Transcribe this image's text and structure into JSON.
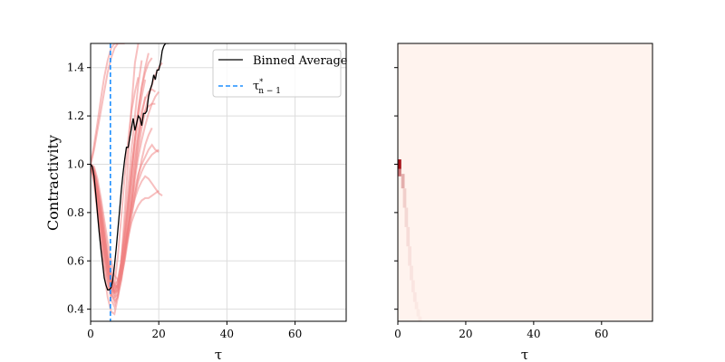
{
  "chart_data": [
    {
      "type": "line",
      "panel": "left",
      "xlabel": "τ",
      "ylabel": "Contractivity",
      "xlim": [
        0,
        75
      ],
      "ylim": [
        0.35,
        1.5
      ],
      "xticks": [
        0,
        20,
        40,
        60
      ],
      "xtick_labels": [
        "0",
        "20",
        "40",
        "60"
      ],
      "yticks": [
        0.4,
        0.6,
        0.8,
        1.0,
        1.2,
        1.4
      ],
      "ytick_labels": [
        "0.4",
        "0.6",
        "0.8",
        "1.0",
        "1.2",
        "1.4"
      ],
      "grid": true,
      "legend_position": "top-right",
      "legend": [
        {
          "label": "Binned Average",
          "color": "#000000",
          "style": "solid"
        },
        {
          "label": "τ*n−1",
          "color": "#1f8fff",
          "style": "dashed"
        }
      ],
      "binned_average": {
        "color": "#000000",
        "x": [
          0,
          0.5,
          1,
          1.5,
          2,
          2.5,
          3,
          3.5,
          4,
          4.5,
          5,
          5.5,
          6,
          6.5,
          7,
          7.5,
          8,
          8.5,
          9,
          9.5,
          10,
          10.5,
          11,
          11.5,
          12,
          12.5,
          13,
          13.5,
          14,
          14.5,
          15,
          15.5,
          16,
          16.5,
          17,
          17.5,
          18,
          18.5,
          19,
          19.5,
          20,
          20.5,
          21,
          21.5,
          22,
          22.5,
          23
        ],
        "y": [
          1.0,
          0.99,
          0.95,
          0.88,
          0.8,
          0.72,
          0.65,
          0.59,
          0.53,
          0.5,
          0.48,
          0.48,
          0.49,
          0.52,
          0.58,
          0.65,
          0.73,
          0.81,
          0.89,
          0.96,
          1.02,
          1.07,
          1.07,
          1.11,
          1.15,
          1.19,
          1.14,
          1.17,
          1.2,
          1.19,
          1.16,
          1.21,
          1.21,
          1.22,
          1.28,
          1.31,
          1.33,
          1.37,
          1.35,
          1.39,
          1.39,
          1.42,
          1.47,
          1.49,
          1.5,
          1.5,
          1.5
        ]
      },
      "tau_star": {
        "x": 5.8,
        "color": "#1f8fff"
      },
      "trajectory_color": "#f08080",
      "trajectories": [
        {
          "x": [
            0,
            1,
            2,
            3,
            4,
            5,
            6,
            7,
            8,
            9,
            10,
            11,
            12,
            13,
            14
          ],
          "y": [
            1.0,
            0.94,
            0.82,
            0.7,
            0.58,
            0.5,
            0.46,
            0.5,
            0.62,
            0.78,
            0.95,
            1.1,
            1.22,
            1.3,
            1.36
          ]
        },
        {
          "x": [
            0,
            1,
            2,
            3,
            4,
            5,
            6,
            7,
            8,
            9,
            10,
            11,
            12,
            13,
            14,
            15,
            16
          ],
          "y": [
            1.0,
            0.97,
            0.9,
            0.8,
            0.7,
            0.6,
            0.52,
            0.48,
            0.52,
            0.6,
            0.72,
            0.85,
            0.98,
            1.1,
            1.2,
            1.28,
            1.35
          ]
        },
        {
          "x": [
            0,
            1,
            2,
            3,
            4,
            5,
            6,
            7,
            8,
            9,
            10,
            11,
            12,
            13,
            14,
            15,
            16,
            17,
            18,
            19,
            20
          ],
          "y": [
            1.0,
            0.96,
            0.88,
            0.78,
            0.68,
            0.58,
            0.5,
            0.46,
            0.48,
            0.55,
            0.64,
            0.74,
            0.83,
            0.9,
            0.96,
            1.0,
            1.03,
            1.06,
            1.08,
            1.06,
            1.05
          ]
        },
        {
          "x": [
            0,
            1,
            2,
            3,
            4,
            5,
            6,
            7,
            8,
            9,
            10,
            11,
            12,
            13,
            14,
            15,
            16,
            17,
            18,
            19,
            20,
            21
          ],
          "y": [
            1.0,
            0.95,
            0.86,
            0.76,
            0.66,
            0.57,
            0.5,
            0.47,
            0.5,
            0.57,
            0.66,
            0.74,
            0.8,
            0.86,
            0.9,
            0.93,
            0.95,
            0.94,
            0.92,
            0.9,
            0.88,
            0.87
          ]
        },
        {
          "x": [
            0,
            1,
            2,
            3,
            4,
            5,
            6,
            7,
            8,
            9,
            10,
            11,
            12,
            13,
            14,
            15,
            16,
            17,
            18
          ],
          "y": [
            1.0,
            0.98,
            0.92,
            0.84,
            0.74,
            0.64,
            0.56,
            0.5,
            0.49,
            0.53,
            0.6,
            0.69,
            0.78,
            0.87,
            0.95,
            1.02,
            1.08,
            1.12,
            1.15
          ]
        },
        {
          "x": [
            0,
            1,
            2,
            3,
            4,
            5,
            6,
            7,
            8,
            9,
            10,
            11,
            12,
            13,
            14,
            15,
            16,
            17
          ],
          "y": [
            1.0,
            0.93,
            0.83,
            0.72,
            0.62,
            0.52,
            0.44,
            0.41,
            0.46,
            0.56,
            0.68,
            0.82,
            0.96,
            1.1,
            1.22,
            1.32,
            1.4,
            1.46
          ]
        },
        {
          "x": [
            0,
            1,
            2,
            3,
            4,
            5,
            6,
            7,
            8,
            9,
            10,
            11,
            12,
            13,
            14,
            15,
            16
          ],
          "y": [
            1.0,
            0.99,
            0.94,
            0.86,
            0.77,
            0.68,
            0.6,
            0.54,
            0.52,
            0.55,
            0.62,
            0.72,
            0.84,
            0.97,
            1.1,
            1.2,
            1.28
          ]
        },
        {
          "x": [
            0,
            1,
            2,
            3,
            4,
            5,
            6,
            7,
            8,
            9,
            10,
            11,
            12,
            13,
            14,
            15,
            16,
            17,
            18,
            19
          ],
          "y": [
            1.0,
            0.96,
            0.87,
            0.76,
            0.65,
            0.55,
            0.47,
            0.43,
            0.45,
            0.52,
            0.63,
            0.76,
            0.89,
            1.01,
            1.11,
            1.18,
            1.22,
            1.24,
            1.25,
            1.25
          ]
        },
        {
          "x": [
            0,
            1,
            2,
            3,
            4,
            5,
            6,
            7,
            8,
            9,
            10,
            11,
            12,
            13,
            14,
            15,
            16,
            17,
            18,
            19,
            20
          ],
          "y": [
            1.0,
            0.97,
            0.9,
            0.81,
            0.71,
            0.61,
            0.53,
            0.49,
            0.5,
            0.56,
            0.64,
            0.73,
            0.81,
            0.88,
            0.93,
            0.97,
            1.0,
            1.02,
            1.04,
            1.05,
            1.06
          ]
        },
        {
          "x": [
            0,
            1,
            2,
            3,
            4,
            5,
            6,
            7,
            8,
            9,
            10,
            11,
            12,
            13,
            14,
            15
          ],
          "y": [
            1.0,
            0.94,
            0.84,
            0.73,
            0.62,
            0.53,
            0.46,
            0.44,
            0.49,
            0.6,
            0.74,
            0.9,
            1.06,
            1.2,
            1.33,
            1.43
          ]
        },
        {
          "x": [
            0,
            1,
            2,
            3,
            4,
            5,
            6,
            7,
            8,
            9,
            10,
            11,
            12,
            13,
            14,
            15,
            16,
            17,
            18,
            19,
            20
          ],
          "y": [
            1.0,
            0.95,
            0.86,
            0.75,
            0.64,
            0.55,
            0.49,
            0.47,
            0.5,
            0.56,
            0.63,
            0.7,
            0.76,
            0.8,
            0.83,
            0.85,
            0.86,
            0.86,
            0.87,
            0.88,
            0.89
          ]
        },
        {
          "x": [
            0,
            1,
            2,
            3,
            4,
            5,
            6,
            7,
            8,
            9,
            10,
            11,
            12,
            13,
            14,
            15,
            16,
            17,
            18
          ],
          "y": [
            1.0,
            0.98,
            0.91,
            0.82,
            0.72,
            0.62,
            0.54,
            0.5,
            0.52,
            0.59,
            0.7,
            0.83,
            0.97,
            1.11,
            1.23,
            1.32,
            1.38,
            1.42,
            1.44
          ]
        },
        {
          "x": [
            0,
            1,
            2,
            3,
            4,
            5,
            6,
            7,
            8,
            9,
            10,
            11,
            12,
            13,
            14,
            15,
            16,
            17,
            18,
            19,
            20,
            21
          ],
          "y": [
            1.0,
            0.96,
            0.88,
            0.78,
            0.67,
            0.57,
            0.49,
            0.45,
            0.46,
            0.52,
            0.61,
            0.72,
            0.84,
            0.96,
            1.06,
            1.15,
            1.22,
            1.28,
            1.33,
            1.37,
            1.4,
            1.42
          ]
        },
        {
          "x": [
            0,
            1,
            2,
            3,
            4,
            5,
            6,
            7,
            8,
            9,
            10,
            11,
            12,
            13,
            14
          ],
          "y": [
            1.0,
            0.92,
            0.8,
            0.67,
            0.55,
            0.45,
            0.39,
            0.38,
            0.45,
            0.6,
            0.8,
            1.02,
            1.24,
            1.42,
            1.5
          ]
        },
        {
          "x": [
            0,
            1,
            2,
            3,
            4,
            5,
            6,
            7,
            8,
            9,
            10,
            11,
            12,
            13,
            14,
            15,
            16,
            17,
            18,
            19
          ],
          "y": [
            1.0,
            0.97,
            0.9,
            0.8,
            0.7,
            0.6,
            0.52,
            0.48,
            0.5,
            0.57,
            0.67,
            0.79,
            0.92,
            1.04,
            1.14,
            1.22,
            1.27,
            1.3,
            1.31,
            1.3
          ]
        },
        {
          "x": [
            0,
            1,
            2,
            3,
            4,
            5,
            6,
            7,
            8,
            9,
            10
          ],
          "y": [
            1.0,
            1.06,
            1.14,
            1.22,
            1.3,
            1.38,
            1.44,
            1.48,
            1.5,
            1.5,
            1.5
          ]
        },
        {
          "x": [
            0,
            1,
            2,
            3,
            4,
            5,
            6,
            7,
            8
          ],
          "y": [
            1.0,
            1.08,
            1.17,
            1.27,
            1.36,
            1.43,
            1.48,
            1.5,
            1.5
          ]
        },
        {
          "x": [
            0,
            1,
            2,
            3,
            4,
            5,
            6,
            7,
            8,
            9,
            10,
            11,
            12,
            13,
            14,
            15,
            16,
            17,
            18,
            19,
            20
          ],
          "y": [
            1.0,
            0.95,
            0.87,
            0.77,
            0.67,
            0.58,
            0.51,
            0.47,
            0.48,
            0.54,
            0.63,
            0.73,
            0.84,
            0.94,
            1.03,
            1.1,
            1.16,
            1.21,
            1.25,
            1.28,
            1.3
          ]
        }
      ]
    },
    {
      "type": "heatmap",
      "panel": "right",
      "xlabel": "τ",
      "xlim": [
        0,
        75
      ],
      "ylim": [
        0.35,
        1.5
      ],
      "xticks": [
        0,
        20,
        40,
        60
      ],
      "xtick_labels": [
        "0",
        "20",
        "40",
        "60"
      ],
      "yticks": [
        0.4,
        0.6,
        0.8,
        1.0,
        1.2,
        1.4
      ],
      "show_ytick_labels": false,
      "colormap": "Reds",
      "background_color": "#fff3ee",
      "cells": [
        {
          "x": [
            0,
            1
          ],
          "y": [
            0.98,
            1.02
          ],
          "density": 1.0
        },
        {
          "x": [
            0,
            1
          ],
          "y": [
            0.95,
            0.98
          ],
          "density": 0.55
        },
        {
          "x": [
            1,
            2
          ],
          "y": [
            0.9,
            0.96
          ],
          "density": 0.3
        },
        {
          "x": [
            1.5,
            2.5
          ],
          "y": [
            0.82,
            0.9
          ],
          "density": 0.16
        },
        {
          "x": [
            2,
            3
          ],
          "y": [
            0.74,
            0.82
          ],
          "density": 0.12
        },
        {
          "x": [
            2.5,
            3.5
          ],
          "y": [
            0.66,
            0.74
          ],
          "density": 0.1
        },
        {
          "x": [
            3,
            4
          ],
          "y": [
            0.58,
            0.66
          ],
          "density": 0.08
        },
        {
          "x": [
            3.5,
            4.5
          ],
          "y": [
            0.52,
            0.58
          ],
          "density": 0.07
        },
        {
          "x": [
            4,
            5
          ],
          "y": [
            0.47,
            0.52
          ],
          "density": 0.06
        },
        {
          "x": [
            4.5,
            5.5
          ],
          "y": [
            0.43,
            0.47
          ],
          "density": 0.06
        },
        {
          "x": [
            5,
            6
          ],
          "y": [
            0.4,
            0.43
          ],
          "density": 0.05
        },
        {
          "x": [
            5.5,
            6.5
          ],
          "y": [
            0.37,
            0.4
          ],
          "density": 0.04
        },
        {
          "x": [
            6,
            7
          ],
          "y": [
            0.35,
            0.37
          ],
          "density": 0.04
        }
      ]
    }
  ]
}
